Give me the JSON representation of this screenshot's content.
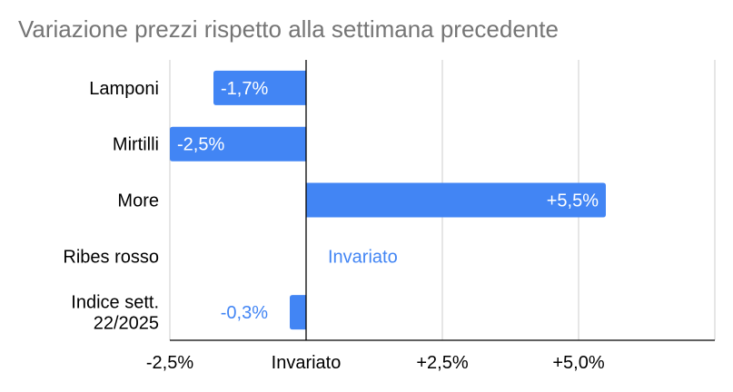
{
  "chart_data": {
    "type": "bar",
    "orientation": "horizontal",
    "title": "Variazione prezzi rispetto alla settimana precedente",
    "categories": [
      [
        "Lamponi"
      ],
      [
        "Mirtilli"
      ],
      [
        "More"
      ],
      [
        "Ribes rosso"
      ],
      [
        "Indice sett.",
        "22/2025"
      ]
    ],
    "values": [
      -1.7,
      -2.5,
      5.5,
      0,
      -0.3
    ],
    "data_labels": [
      "-1,7%",
      "-2,5%",
      "+5,5%",
      "Invariato",
      "-0,3%"
    ],
    "xlim": [
      -2.5,
      7.5
    ],
    "x_ticks": [
      {
        "value": -2.5,
        "label": "-2,5%"
      },
      {
        "value": 0,
        "label": "Invariato"
      },
      {
        "value": 2.5,
        "label": "+2,5%"
      },
      {
        "value": 5.0,
        "label": "+5,0%"
      },
      {
        "value": 7.5,
        "label": ""
      }
    ],
    "grid": true,
    "legend": "none",
    "colors": {
      "bar": "#4285f4",
      "label_inside": "#ffffff",
      "label_outside": "#4285f4",
      "title": "#757575",
      "grid": "#cccccc",
      "axis": "#000000",
      "text": "#000000"
    }
  }
}
